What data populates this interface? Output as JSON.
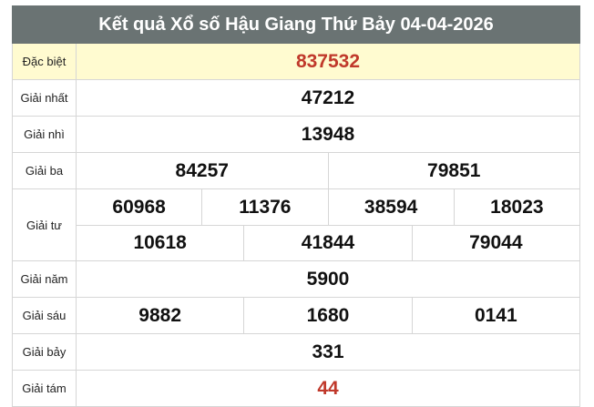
{
  "title": "Kết quả Xổ số Hậu Giang Thứ Bảy 04-04-2026",
  "colors": {
    "header": "#6a7373",
    "special_bg": "#fffbd0",
    "highlight": "#c0392b"
  },
  "prizes": [
    {
      "label": "Đặc biệt",
      "rows": [
        [
          "837532"
        ]
      ]
    },
    {
      "label": "Giải nhất",
      "rows": [
        [
          "47212"
        ]
      ]
    },
    {
      "label": "Giải nhì",
      "rows": [
        [
          "13948"
        ]
      ]
    },
    {
      "label": "Giải ba",
      "rows": [
        [
          "84257",
          "79851"
        ]
      ]
    },
    {
      "label": "Giải tư",
      "rows": [
        [
          "60968",
          "11376",
          "38594",
          "18023"
        ],
        [
          "10618",
          "41844",
          "79044"
        ]
      ]
    },
    {
      "label": "Giải năm",
      "rows": [
        [
          "5900"
        ]
      ]
    },
    {
      "label": "Giải sáu",
      "rows": [
        [
          "9882",
          "1680",
          "0141"
        ]
      ]
    },
    {
      "label": "Giải bảy",
      "rows": [
        [
          "331"
        ]
      ]
    },
    {
      "label": "Giải tám",
      "rows": [
        [
          "44"
        ]
      ]
    }
  ]
}
